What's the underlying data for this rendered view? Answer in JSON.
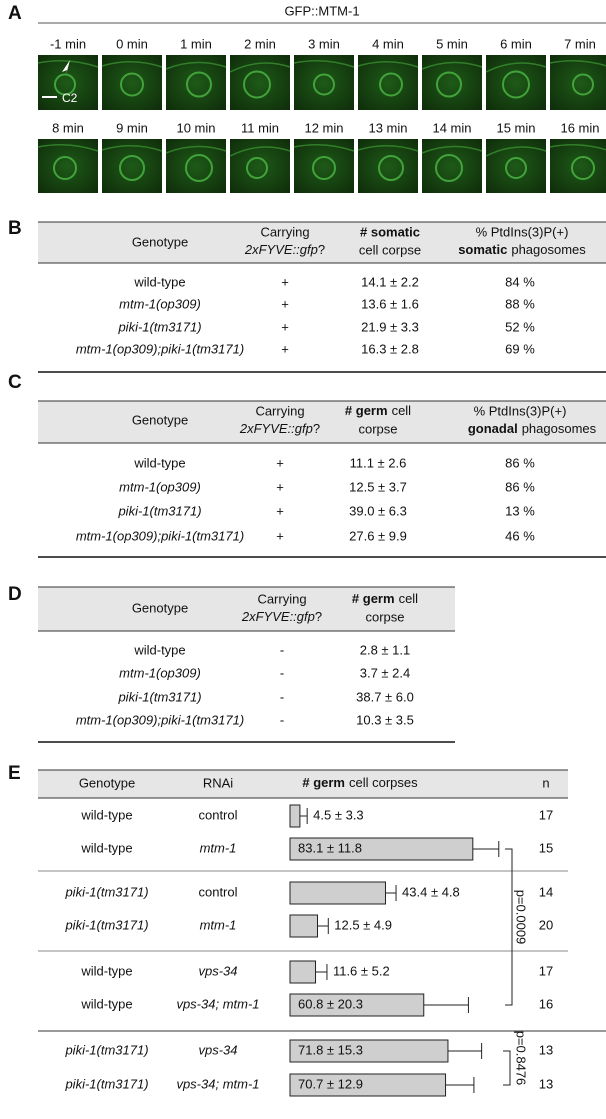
{
  "panel_a": {
    "label": "A",
    "title": "GFP::MTM-1",
    "times": [
      "-1 min",
      "0 min",
      "1 min",
      "2 min",
      "3 min",
      "4 min",
      "5 min",
      "6 min",
      "7 min",
      "8 min",
      "9 min",
      "10 min",
      "11 min",
      "12 min",
      "13 min",
      "14 min",
      "15 min",
      "16 min"
    ],
    "cell_label": "C2"
  },
  "panel_b": {
    "label": "B",
    "header": {
      "genotype": "Genotype",
      "carrying": [
        "Carrying",
        "2xFYVE::gfp",
        "?"
      ],
      "corpse": [
        "# somatic",
        "cell corpse"
      ],
      "percent": [
        "% PtdIns(3)P(+)",
        "somatic",
        "phagosomes"
      ]
    },
    "rows": [
      {
        "genotype": "wild-type",
        "italic": false,
        "carrying": "+",
        "corpse": "14.1 ± 2.2",
        "percent": "84 %"
      },
      {
        "genotype": "mtm-1(op309)",
        "italic": true,
        "carrying": "+",
        "corpse": "13.6 ± 1.6",
        "percent": "88 %"
      },
      {
        "genotype": "piki-1(tm3171)",
        "italic": true,
        "carrying": "+",
        "corpse": "21.9 ± 3.3",
        "percent": "52 %"
      },
      {
        "genotype": "mtm-1(op309);piki-1(tm3171)",
        "italic": true,
        "carrying": "+",
        "corpse": "16.3 ± 2.8",
        "percent": "69 %"
      }
    ]
  },
  "panel_c": {
    "label": "C",
    "header": {
      "genotype": "Genotype",
      "carrying": [
        "Carrying",
        "2xFYVE::gfp",
        "?"
      ],
      "corpse": [
        "# germ",
        "cell",
        "corpse"
      ],
      "percent": [
        "% PtdIns(3)P(+)",
        "gonadal",
        "phagosomes"
      ]
    },
    "rows": [
      {
        "genotype": "wild-type",
        "italic": false,
        "carrying": "+",
        "corpse": "11.1 ± 2.6",
        "percent": "86 %"
      },
      {
        "genotype": "mtm-1(op309)",
        "italic": true,
        "carrying": "+",
        "corpse": "12.5 ± 3.7",
        "percent": "86 %"
      },
      {
        "genotype": "piki-1(tm3171)",
        "italic": true,
        "carrying": "+",
        "corpse": "39.0 ± 6.3",
        "percent": "13 %"
      },
      {
        "genotype": "mtm-1(op309);piki-1(tm3171)",
        "italic": true,
        "carrying": "+",
        "corpse": "27.6 ± 9.9",
        "percent": "46 %"
      }
    ]
  },
  "panel_d": {
    "label": "D",
    "header": {
      "genotype": "Genotype",
      "carrying": [
        "Carrying",
        "2xFYVE::gfp",
        "?"
      ],
      "corpse": [
        "# germ",
        "cell",
        "corpse"
      ]
    },
    "rows": [
      {
        "genotype": "wild-type",
        "italic": false,
        "carrying": "-",
        "corpse": "2.8 ± 1.1"
      },
      {
        "genotype": "mtm-1(op309)",
        "italic": true,
        "carrying": "-",
        "corpse": "3.7 ± 2.4"
      },
      {
        "genotype": "piki-1(tm3171)",
        "italic": true,
        "carrying": "-",
        "corpse": "38.7 ± 6.0"
      },
      {
        "genotype": "mtm-1(op309);piki-1(tm3171)",
        "italic": true,
        "carrying": "-",
        "corpse": "10.3 ± 3.5"
      }
    ]
  },
  "panel_e": {
    "label": "E",
    "header": {
      "genotype": "Genotype",
      "rnai": "RNAi",
      "corpses": [
        "# germ",
        "cell corpses"
      ],
      "n": "n"
    },
    "rows": [
      {
        "genotype": "wild-type",
        "genotype_italic": false,
        "rnai": "control",
        "rnai_italic": false,
        "mean": 4.5,
        "sd": 3.3,
        "label": "4.5 ± 3.3",
        "n": 17
      },
      {
        "genotype": "wild-type",
        "genotype_italic": false,
        "rnai": "mtm-1",
        "rnai_italic": true,
        "mean": 83.1,
        "sd": 11.8,
        "label": "83.1 ± 11.8",
        "n": 15
      },
      {
        "genotype": "piki-1(tm3171)",
        "genotype_italic": true,
        "rnai": "control",
        "rnai_italic": false,
        "mean": 43.4,
        "sd": 4.8,
        "label": "43.4 ± 4.8",
        "n": 14
      },
      {
        "genotype": "piki-1(tm3171)",
        "genotype_italic": true,
        "rnai": "mtm-1",
        "rnai_italic": true,
        "mean": 12.5,
        "sd": 4.9,
        "label": "12.5 ± 4.9",
        "n": 20
      },
      {
        "genotype": "wild-type",
        "genotype_italic": false,
        "rnai": "vps-34",
        "rnai_italic": true,
        "mean": 11.6,
        "sd": 5.2,
        "label": "11.6 ± 5.2",
        "n": 17
      },
      {
        "genotype": "wild-type",
        "genotype_italic": false,
        "rnai": "vps-34; mtm-1",
        "rnai_italic": true,
        "mean": 60.8,
        "sd": 20.3,
        "label": "60.8 ± 20.3",
        "n": 16
      },
      {
        "genotype": "piki-1(tm3171)",
        "genotype_italic": true,
        "rnai": "vps-34",
        "rnai_italic": true,
        "mean": 71.8,
        "sd": 15.3,
        "label": "71.8 ± 15.3",
        "n": 13
      },
      {
        "genotype": "piki-1(tm3171)",
        "genotype_italic": true,
        "rnai": "vps-34; mtm-1",
        "rnai_italic": true,
        "mean": 70.7,
        "sd": 12.9,
        "label": "70.7 ± 12.9",
        "n": 13
      }
    ],
    "p_values": [
      "p=0.0009",
      "p=0.8476"
    ]
  }
}
